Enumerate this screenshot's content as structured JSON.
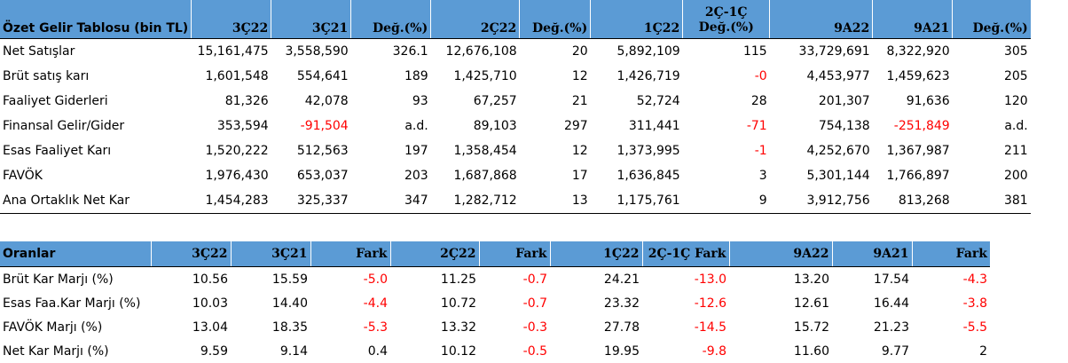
{
  "income_table": {
    "headers": [
      "Özet Gelir Tablosu (bin TL)",
      "3Ç22",
      "3Ç21",
      "Değ.(%)",
      "2Ç22",
      "Değ.(%)",
      "1Ç22",
      "2Ç-1Ç Değ.(%)",
      "9A22",
      "9A21",
      "Değ.(%)"
    ],
    "header_top_line": "2Ç-1Ç",
    "header_bottom_line": "Değ.(%)",
    "rows": [
      {
        "label": "Net Satışlar",
        "cells": [
          "15,161,475",
          "3,558,590",
          "326.1",
          "12,676,108",
          "20",
          "5,892,109",
          "115",
          "33,729,691",
          "8,322,920",
          "305"
        ]
      },
      {
        "label": "Brüt satış karı",
        "cells": [
          "1,601,548",
          "554,641",
          "189",
          "1,425,710",
          "12",
          "1,426,719",
          "-0",
          "4,453,977",
          "1,459,623",
          "205"
        ]
      },
      {
        "label": "Faaliyet Giderleri",
        "cells": [
          "81,326",
          "42,078",
          "93",
          "67,257",
          "21",
          "52,724",
          "28",
          "201,307",
          "91,636",
          "120"
        ]
      },
      {
        "label": "Finansal Gelir/Gider",
        "cells": [
          "353,594",
          "-91,504",
          "a.d.",
          "89,103",
          "297",
          "311,441",
          "-71",
          "754,138",
          "-251,849",
          "a.d."
        ]
      },
      {
        "label": "Esas Faaliyet Karı",
        "cells": [
          "1,520,222",
          "512,563",
          "197",
          "1,358,454",
          "12",
          "1,373,995",
          "-1",
          "4,252,670",
          "1,367,987",
          "211"
        ]
      },
      {
        "label": "FAVÖK",
        "cells": [
          "1,976,430",
          "653,037",
          "203",
          "1,687,868",
          "17",
          "1,636,845",
          "3",
          "5,301,144",
          "1,766,897",
          "200"
        ]
      },
      {
        "label": "Ana Ortaklık Net Kar",
        "cells": [
          "1,454,283",
          "325,337",
          "347",
          "1,282,712",
          "13",
          "1,175,761",
          "9",
          "3,912,756",
          "813,268",
          "381"
        ]
      }
    ]
  },
  "ratio_table": {
    "headers": [
      "Oranlar",
      "3Ç22",
      "3Ç21",
      "Fark",
      "2Ç22",
      "Fark",
      "1Ç22",
      "2Ç-1Ç Fark",
      "9A22",
      "9A21",
      "Fark"
    ],
    "rows": [
      {
        "label": "Brüt Kar Marjı (%)",
        "cells": [
          "10.56",
          "15.59",
          "-5.0",
          "11.25",
          "-0.7",
          "24.21",
          "-13.0",
          "13.20",
          "17.54",
          "-4.3"
        ]
      },
      {
        "label": "Esas Faa.Kar Marjı (%)",
        "cells": [
          "10.03",
          "14.40",
          "-4.4",
          "10.72",
          "-0.7",
          "23.32",
          "-12.6",
          "12.61",
          "16.44",
          "-3.8"
        ]
      },
      {
        "label": "FAVÖK Marjı (%)",
        "cells": [
          "13.04",
          "18.35",
          "-5.3",
          "13.32",
          "-0.3",
          "27.78",
          "-14.5",
          "15.72",
          "21.23",
          "-5.5"
        ]
      },
      {
        "label": "Net Kar Marjı (%)",
        "cells": [
          "9.59",
          "9.14",
          "0.4",
          "10.12",
          "-0.5",
          "19.95",
          "-9.8",
          "11.60",
          "9.77",
          "2"
        ]
      }
    ]
  },
  "colors": {
    "header_bg": "#5b9bd5",
    "negative": "#ff0000",
    "text": "#000000"
  }
}
